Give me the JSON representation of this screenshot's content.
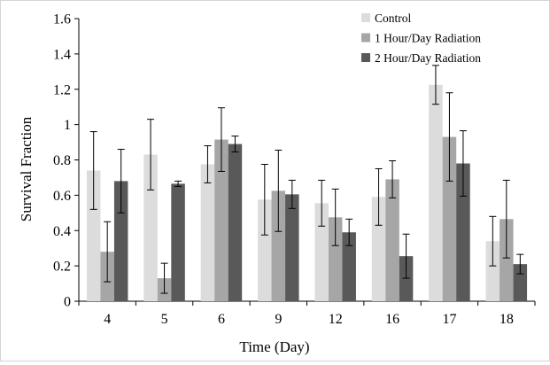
{
  "chart_data": {
    "type": "bar",
    "title": "",
    "xlabel": "Time (Day)",
    "ylabel": "Survival Fraction",
    "ylim": [
      0,
      1.6
    ],
    "yticks": [
      "0",
      "0.2",
      "0.4",
      "0.6",
      "0.8",
      "1",
      "1.2",
      "1.4",
      "1.6"
    ],
    "categories": [
      "4",
      "5",
      "6",
      "9",
      "12",
      "16",
      "17",
      "18"
    ],
    "grid": false,
    "legend_position": "top-right",
    "series": [
      {
        "name": "Control",
        "color": "#dcdcdc",
        "values": [
          0.74,
          0.83,
          0.775,
          0.575,
          0.555,
          0.59,
          1.225,
          0.34
        ],
        "error": [
          0.22,
          0.2,
          0.105,
          0.2,
          0.13,
          0.16,
          0.11,
          0.14
        ]
      },
      {
        "name": "1 Hour/Day Radiation",
        "color": "#a6a6a6",
        "values": [
          0.28,
          0.13,
          0.915,
          0.625,
          0.475,
          0.69,
          0.93,
          0.465
        ],
        "error": [
          0.17,
          0.085,
          0.18,
          0.23,
          0.16,
          0.105,
          0.25,
          0.22
        ]
      },
      {
        "name": "2 Hour/Day Radiation",
        "color": "#595959",
        "values": [
          0.68,
          0.665,
          0.89,
          0.605,
          0.39,
          0.255,
          0.78,
          0.21
        ],
        "error": [
          0.18,
          0.015,
          0.045,
          0.08,
          0.075,
          0.125,
          0.185,
          0.055
        ]
      }
    ]
  }
}
